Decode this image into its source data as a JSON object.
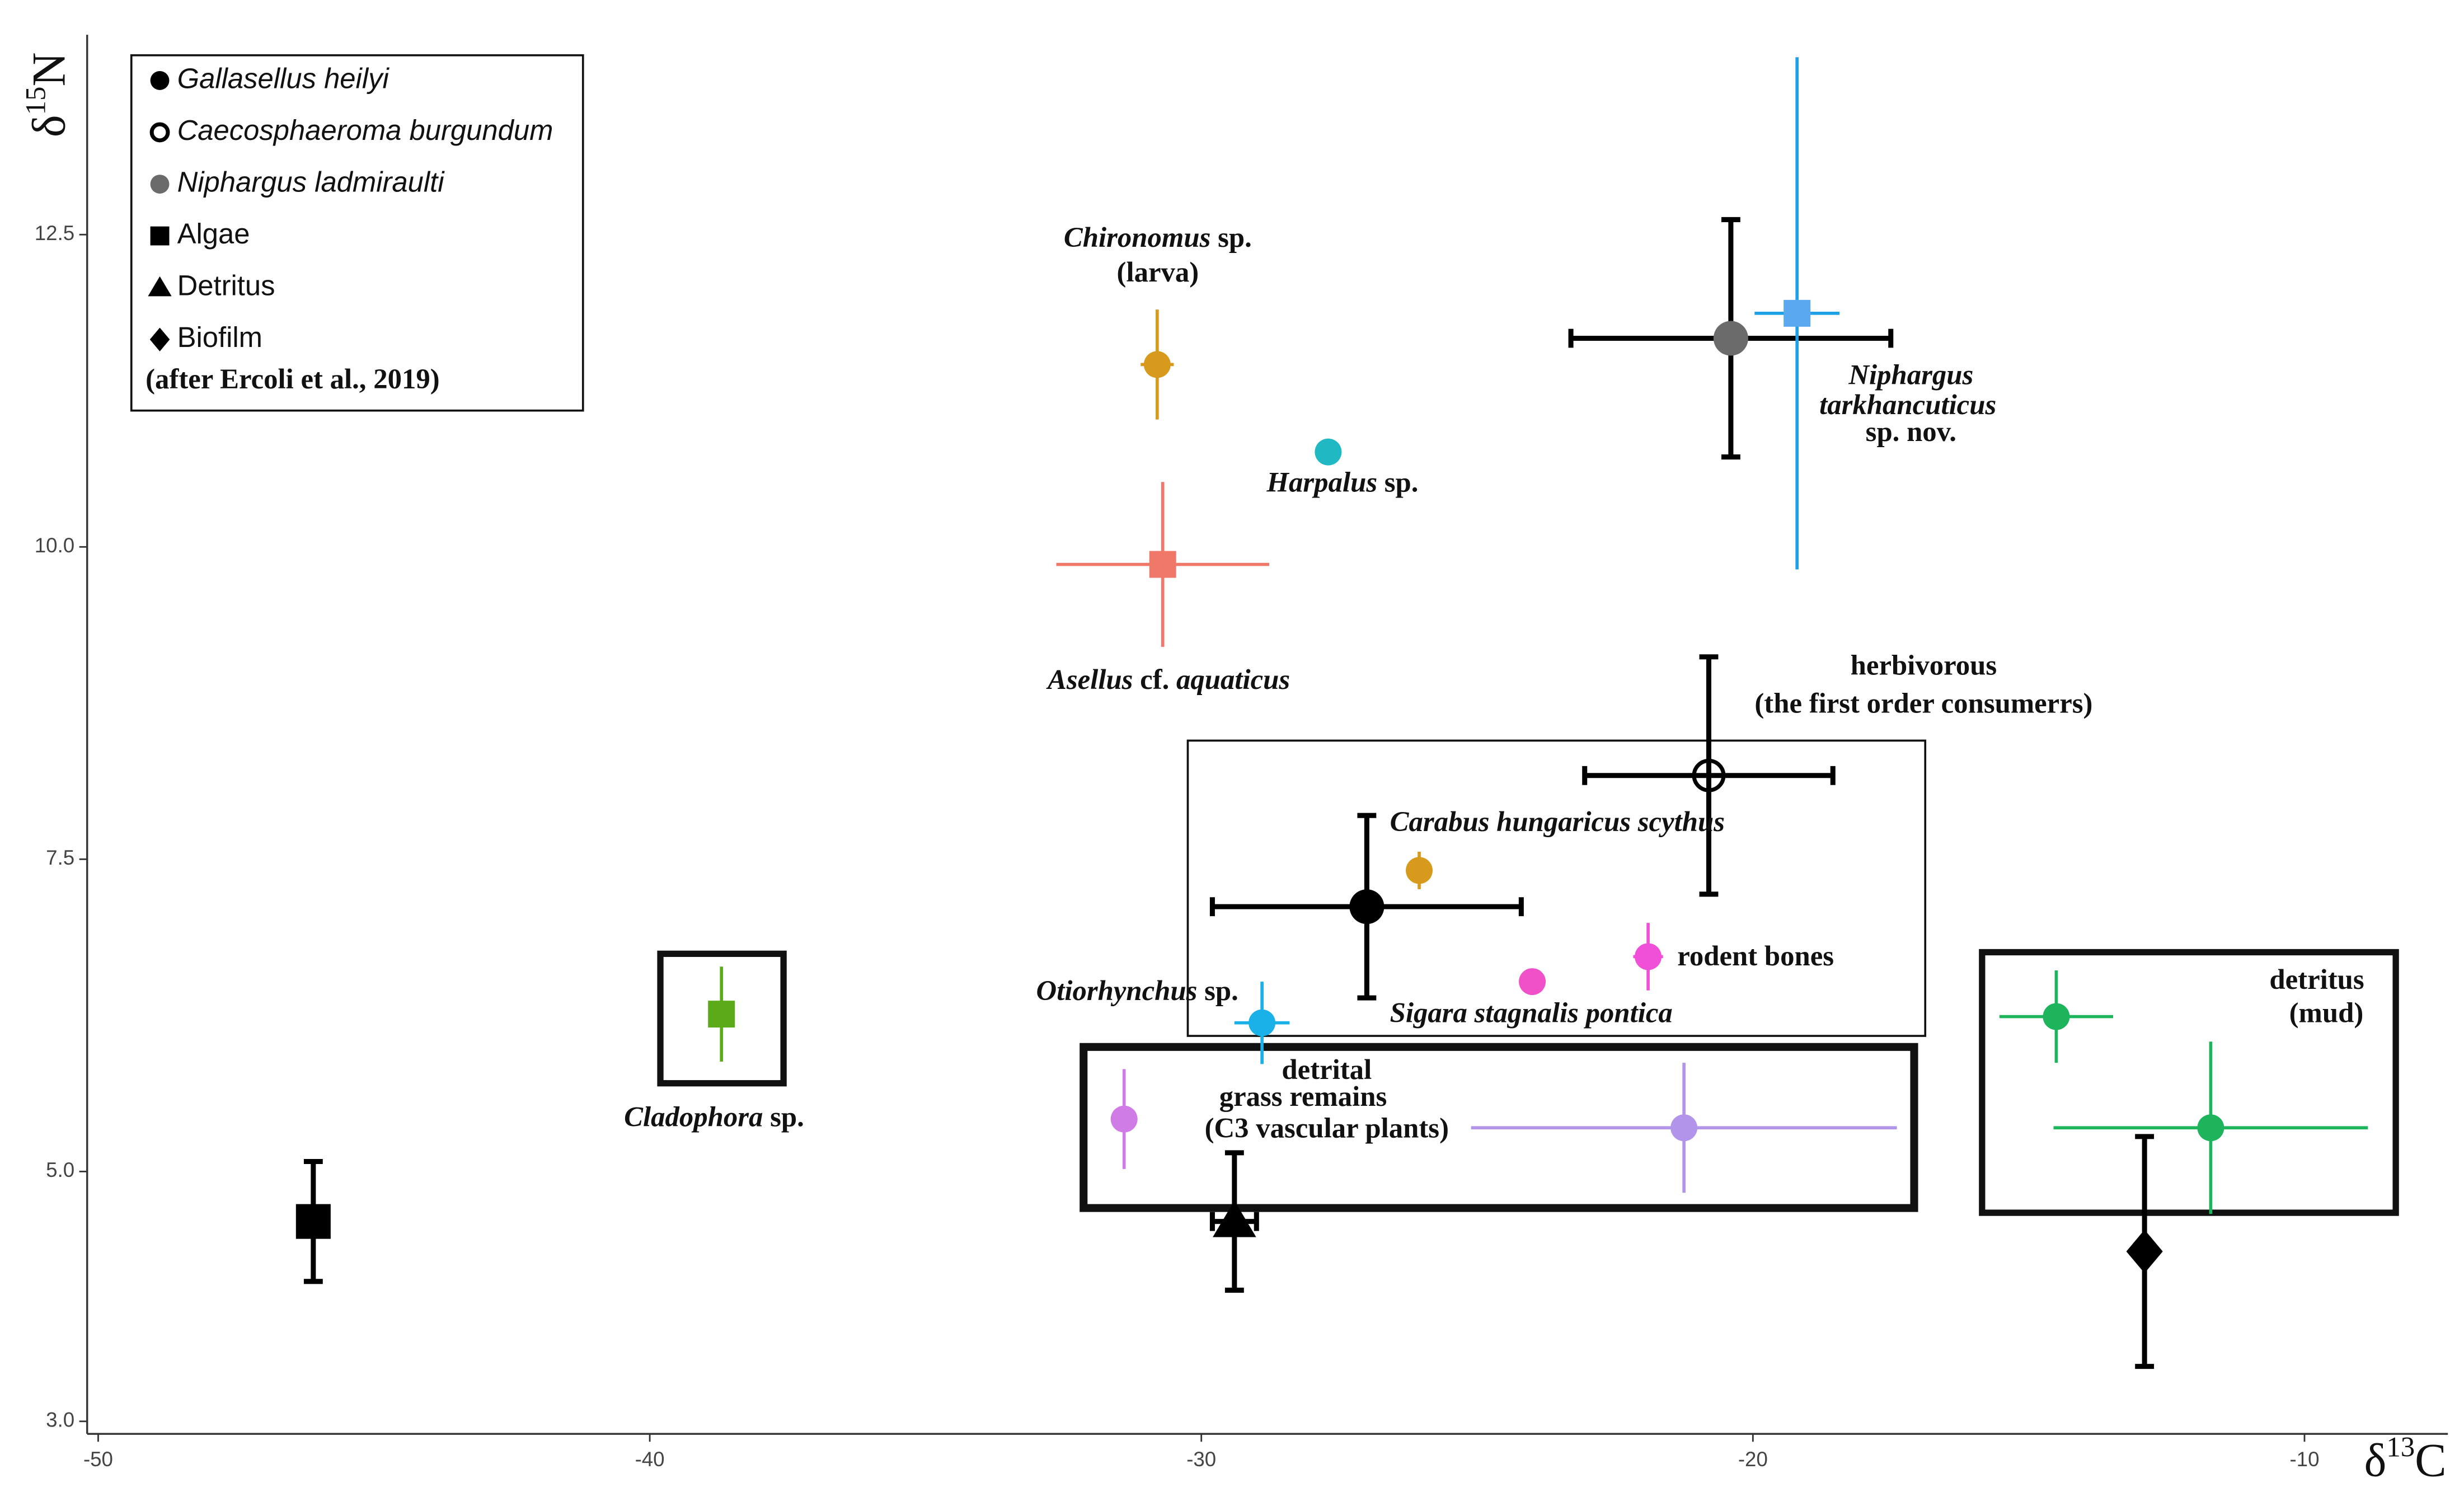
{
  "chart_data": {
    "type": "scatter",
    "xlabel": [
      "δ",
      "13",
      "C"
    ],
    "ylabel": [
      "δ",
      "15",
      "N"
    ],
    "xlim": [
      -50.2,
      -7.4
    ],
    "ylim": [
      2.9,
      14.1
    ],
    "xticks": [
      -50,
      -40,
      -30,
      -20,
      -10
    ],
    "yticks": [
      {
        "value": 3,
        "label": "3.0"
      },
      {
        "value": 5,
        "label": "5.0"
      },
      {
        "value": 7.5,
        "label": "7.5"
      },
      {
        "value": 10,
        "label": "10.0"
      },
      {
        "value": 12.5,
        "label": "12.5"
      }
    ],
    "grid": false,
    "legend": "top-left",
    "legend_note": "(after Ercoli et al., 2019)",
    "series": [
      {
        "name": "Gallasellus heilyi",
        "italic": true,
        "marker": "circle",
        "color": "#000000",
        "error_color": "#000000",
        "caps": true,
        "x": [
          -27.0
        ],
        "values": [
          7.12
        ],
        "xerr": [
          2.8
        ],
        "yerr": [
          0.73
        ]
      },
      {
        "name": "Caecosphaeroma burgundum",
        "italic": true,
        "marker": "open-circle",
        "color": "#000000",
        "error_color": "#000000",
        "caps": true,
        "x": [
          -20.8
        ],
        "values": [
          8.17
        ],
        "xerr": [
          2.25
        ],
        "yerr": [
          0.95
        ]
      },
      {
        "name": "Niphargus ladmiraulti",
        "italic": true,
        "marker": "circle",
        "color": "#6b6b6b",
        "error_color": "#000000",
        "caps": true,
        "x": [
          -20.4
        ],
        "values": [
          11.67
        ],
        "xerr": [
          2.9
        ],
        "yerr": [
          0.95
        ]
      },
      {
        "name": "Algae",
        "italic": false,
        "marker": "square",
        "color": "#000000",
        "error_color": "#000000",
        "caps": true,
        "x": [
          -46.1
        ],
        "values": [
          4.6
        ],
        "xerr": [
          null
        ],
        "yerr": [
          0.48
        ]
      },
      {
        "name": "Detritus",
        "italic": false,
        "marker": "triangle",
        "color": "#000000",
        "error_color": "#000000",
        "caps": true,
        "x": [
          -29.4
        ],
        "values": [
          4.6
        ],
        "xerr": [
          0.4
        ],
        "yerr": [
          0.55
        ]
      },
      {
        "name": "Biofilm",
        "italic": false,
        "marker": "diamond",
        "color": "#000000",
        "error_color": "#000000",
        "caps": true,
        "x": [
          -12.9
        ],
        "values": [
          4.36
        ],
        "xerr": [
          null
        ],
        "yerr": [
          0.92
        ]
      },
      {
        "marker": "circle",
        "color": "#d79a1c",
        "error_color": "#d79a1c",
        "caps": false,
        "x": [
          -30.8
        ],
        "values": [
          11.46
        ],
        "xerr": [
          0.3
        ],
        "yerr": [
          0.44
        ]
      },
      {
        "marker": "circle",
        "color": "#1fb8c3",
        "error_color": "#1fb8c3",
        "caps": false,
        "x": [
          -27.7
        ],
        "values": [
          10.76
        ],
        "xerr": [
          null
        ],
        "yerr": [
          null
        ]
      },
      {
        "marker": "square",
        "color": "#f07868",
        "error_color": "#f07868",
        "caps": false,
        "x": [
          -30.7
        ],
        "values": [
          9.86
        ],
        "xerr": [
          1.93
        ],
        "yerr": [
          0.66
        ]
      },
      {
        "marker": "square",
        "color": "#5aa8f0",
        "error_color": "#1ea0e6",
        "caps": false,
        "x": [
          -19.2
        ],
        "values": [
          11.87
        ],
        "xerr": [
          0.77
        ],
        "yerr": [
          2.05
        ]
      },
      {
        "marker": "circle",
        "color": "#d79a1c",
        "error_color": "#d79a1c",
        "caps": false,
        "x": [
          -26.05
        ],
        "values": [
          7.41
        ],
        "xerr": [
          null
        ],
        "yerr": [
          0.15
        ]
      },
      {
        "marker": "circle",
        "color": "#f050c8",
        "error_color": "#f050c8",
        "caps": false,
        "x": [
          -24.0
        ],
        "values": [
          6.52
        ],
        "xerr": [
          null
        ],
        "yerr": [
          null
        ]
      },
      {
        "marker": "circle",
        "color": "#f050d8",
        "error_color": "#f050d8",
        "caps": false,
        "x": [
          -21.9
        ],
        "values": [
          6.72
        ],
        "xerr": [
          0.27
        ],
        "yerr": [
          0.27
        ]
      },
      {
        "marker": "circle",
        "color": "#1ab0e8",
        "error_color": "#1ab0e8",
        "caps": false,
        "x": [
          -28.9
        ],
        "values": [
          6.19
        ],
        "xerr": [
          0.5
        ],
        "yerr": [
          0.33
        ]
      },
      {
        "marker": "square",
        "color": "#5aaa1a",
        "error_color": "#5aaa1a",
        "caps": false,
        "x": [
          -38.7
        ],
        "values": [
          6.26
        ],
        "xerr": [
          null
        ],
        "yerr": [
          0.38
        ]
      },
      {
        "marker": "circle",
        "color": "#d07ce6",
        "error_color": "#d07ce6",
        "caps": false,
        "x": [
          -31.4
        ],
        "values": [
          5.42
        ],
        "xerr": [
          null
        ],
        "yerr": [
          0.4
        ]
      },
      {
        "marker": "circle",
        "color": "#b294ea",
        "error_color": "#b294ea",
        "caps": false,
        "x": [
          -21.25
        ],
        "values": [
          5.35
        ],
        "xerr": [
          3.86
        ],
        "yerr": [
          0.52
        ]
      },
      {
        "marker": "circle",
        "color": "#1db45c",
        "error_color": "#1db45c",
        "caps": false,
        "x": [
          -14.5,
          -11.7
        ],
        "values": [
          6.24,
          5.35
        ],
        "xerr": [
          1.03,
          2.85
        ],
        "yerr": [
          0.37,
          0.69
        ]
      }
    ],
    "annotations": [
      [
        {
          "text": "Chironomus",
          "italic": true
        },
        {
          "text": " sp.",
          "italic": false
        }
      ],
      [
        {
          "text": "(larva)",
          "italic": false
        }
      ],
      [
        {
          "text": "Harpalus",
          "italic": true
        },
        {
          "text": " sp.",
          "italic": false
        }
      ],
      [
        {
          "text": "Asellus",
          "italic": true
        },
        {
          "text": " cf. ",
          "italic": false
        },
        {
          "text": "aquaticus",
          "italic": true
        }
      ],
      [
        {
          "text": "Niphargus",
          "italic": true
        }
      ],
      [
        {
          "text": "tarkhancuticus",
          "italic": true
        }
      ],
      [
        {
          "text": "sp. nov.",
          "italic": false
        }
      ],
      [
        {
          "text": "herbivorous",
          "italic": false
        }
      ],
      [
        {
          "text": "(the first order consumerrs)",
          "italic": false
        }
      ],
      [
        {
          "text": "Carabus hungaricus scythus",
          "italic": true
        }
      ],
      [
        {
          "text": "rodent bones",
          "italic": false
        }
      ],
      [
        {
          "text": "Otiorhynchus",
          "italic": true
        },
        {
          "text": " sp.",
          "italic": false
        }
      ],
      [
        {
          "text": "Sigara stagnalis pontica",
          "italic": true
        }
      ],
      [
        {
          "text": "detrital",
          "italic": false
        }
      ],
      [
        {
          "text": "grass remains",
          "italic": false
        }
      ],
      [
        {
          "text": "(C3 vascular plants)",
          "italic": false
        }
      ],
      [
        {
          "text": "Cladophora",
          "italic": true
        },
        {
          "text": " sp.",
          "italic": false
        }
      ],
      [
        {
          "text": "detritus",
          "italic": false
        }
      ],
      [
        {
          "text": "(mud)",
          "italic": false
        }
      ]
    ]
  }
}
